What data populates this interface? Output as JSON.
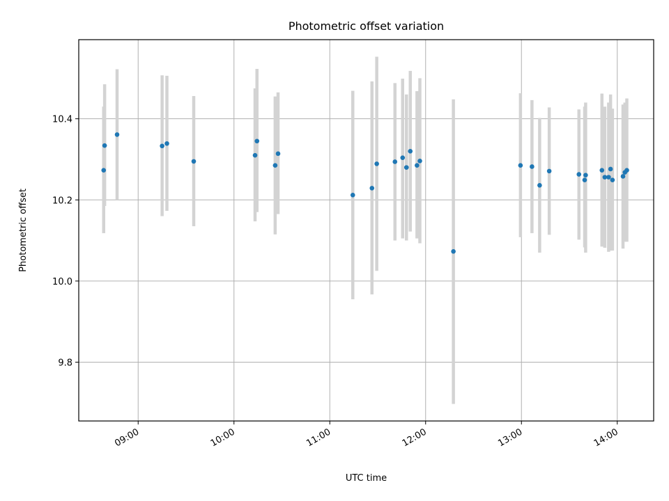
{
  "chart_data": {
    "type": "scatter",
    "title": "Photometric offset variation",
    "xlabel": "UTC time",
    "ylabel": "Photometric offset",
    "x_unit": "hours UTC",
    "xlim": [
      8.38,
      14.38
    ],
    "ylim": [
      9.655,
      10.595
    ],
    "x_ticks": [
      {
        "value": 9,
        "label": "09:00"
      },
      {
        "value": 10,
        "label": "10:00"
      },
      {
        "value": 11,
        "label": "11:00"
      },
      {
        "value": 12,
        "label": "12:00"
      },
      {
        "value": 13,
        "label": "13:00"
      },
      {
        "value": 14,
        "label": "14:00"
      }
    ],
    "y_ticks": [
      {
        "value": 9.8,
        "label": "9.8"
      },
      {
        "value": 10.0,
        "label": "10.0"
      },
      {
        "value": 10.2,
        "label": "10.2"
      },
      {
        "value": 10.4,
        "label": "10.4"
      }
    ],
    "grid": true,
    "colors": {
      "point": "#1f77b4",
      "errorbar": "#d3d3d3",
      "grid": "#b0b0b0"
    },
    "points": [
      {
        "t": 8.64,
        "y": 10.273,
        "lo": 10.118,
        "hi": 10.43
      },
      {
        "t": 8.65,
        "y": 10.334,
        "lo": 10.185,
        "hi": 10.485
      },
      {
        "t": 8.78,
        "y": 10.361,
        "lo": 10.2,
        "hi": 10.522
      },
      {
        "t": 9.25,
        "y": 10.333,
        "lo": 10.16,
        "hi": 10.507
      },
      {
        "t": 9.3,
        "y": 10.339,
        "lo": 10.173,
        "hi": 10.506
      },
      {
        "t": 9.58,
        "y": 10.295,
        "lo": 10.135,
        "hi": 10.456
      },
      {
        "t": 10.22,
        "y": 10.31,
        "lo": 10.147,
        "hi": 10.475
      },
      {
        "t": 10.24,
        "y": 10.345,
        "lo": 10.17,
        "hi": 10.523
      },
      {
        "t": 10.43,
        "y": 10.285,
        "lo": 10.115,
        "hi": 10.455
      },
      {
        "t": 10.46,
        "y": 10.314,
        "lo": 10.165,
        "hi": 10.465
      },
      {
        "t": 11.24,
        "y": 10.212,
        "lo": 9.955,
        "hi": 10.469
      },
      {
        "t": 11.44,
        "y": 10.229,
        "lo": 9.967,
        "hi": 10.492
      },
      {
        "t": 11.49,
        "y": 10.289,
        "lo": 10.025,
        "hi": 10.553
      },
      {
        "t": 11.68,
        "y": 10.294,
        "lo": 10.1,
        "hi": 10.488
      },
      {
        "t": 11.76,
        "y": 10.304,
        "lo": 10.105,
        "hi": 10.499
      },
      {
        "t": 11.8,
        "y": 10.28,
        "lo": 10.1,
        "hi": 10.46
      },
      {
        "t": 11.84,
        "y": 10.32,
        "lo": 10.122,
        "hi": 10.518
      },
      {
        "t": 11.91,
        "y": 10.285,
        "lo": 10.105,
        "hi": 10.468
      },
      {
        "t": 11.94,
        "y": 10.296,
        "lo": 10.093,
        "hi": 10.5
      },
      {
        "t": 12.29,
        "y": 10.073,
        "lo": 9.697,
        "hi": 10.448
      },
      {
        "t": 12.99,
        "y": 10.285,
        "lo": 10.108,
        "hi": 10.463
      },
      {
        "t": 13.11,
        "y": 10.282,
        "lo": 10.118,
        "hi": 10.446
      },
      {
        "t": 13.19,
        "y": 10.236,
        "lo": 10.07,
        "hi": 10.402
      },
      {
        "t": 13.29,
        "y": 10.271,
        "lo": 10.114,
        "hi": 10.428
      },
      {
        "t": 13.6,
        "y": 10.263,
        "lo": 10.102,
        "hi": 10.423
      },
      {
        "t": 13.66,
        "y": 10.249,
        "lo": 10.083,
        "hi": 10.43
      },
      {
        "t": 13.67,
        "y": 10.261,
        "lo": 10.07,
        "hi": 10.44
      },
      {
        "t": 13.84,
        "y": 10.273,
        "lo": 10.085,
        "hi": 10.462
      },
      {
        "t": 13.87,
        "y": 10.256,
        "lo": 10.082,
        "hi": 10.43
      },
      {
        "t": 13.91,
        "y": 10.256,
        "lo": 10.072,
        "hi": 10.44
      },
      {
        "t": 13.93,
        "y": 10.276,
        "lo": 10.075,
        "hi": 10.46
      },
      {
        "t": 13.95,
        "y": 10.249,
        "lo": 10.075,
        "hi": 10.425
      },
      {
        "t": 14.06,
        "y": 10.258,
        "lo": 10.08,
        "hi": 10.435
      },
      {
        "t": 14.08,
        "y": 10.268,
        "lo": 10.097,
        "hi": 10.44
      },
      {
        "t": 14.1,
        "y": 10.273,
        "lo": 10.097,
        "hi": 10.45
      }
    ]
  }
}
